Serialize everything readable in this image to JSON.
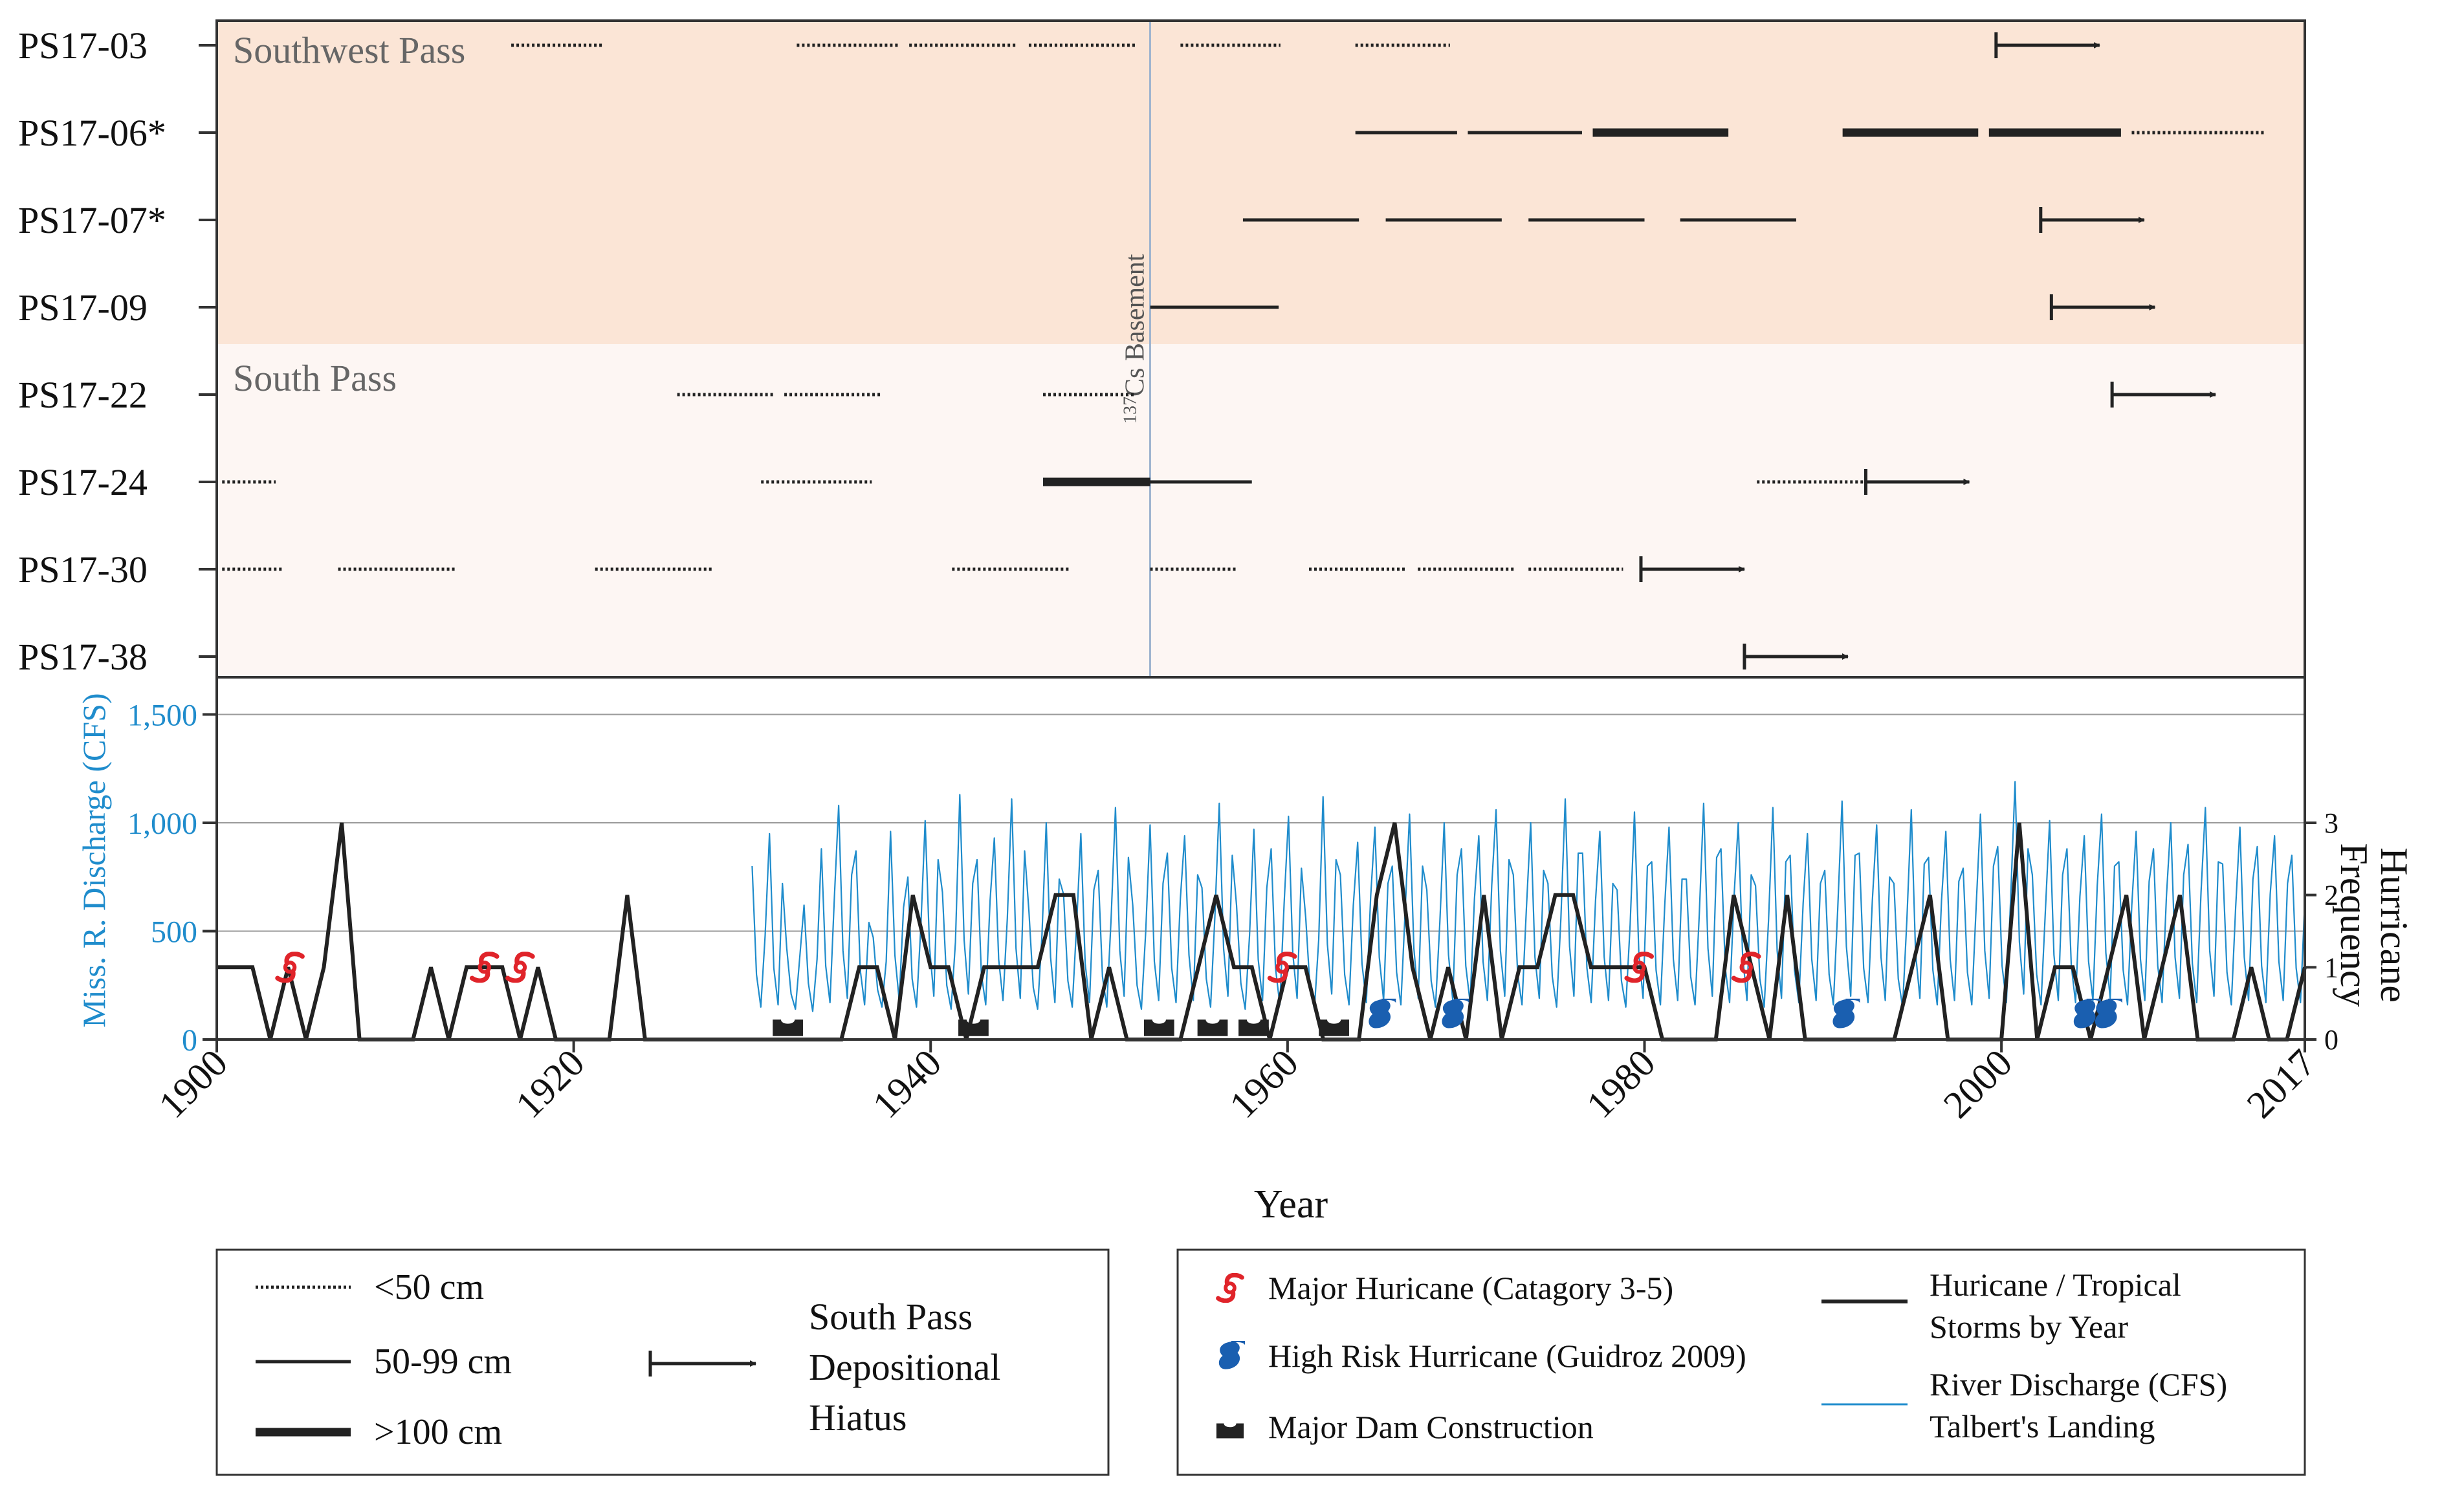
{
  "colors": {
    "southwest_bg": "#fbe5d6",
    "south_bg": "#fdf6f3",
    "discharge": "#1f8ccc",
    "axis_blue": "#1f8ccc",
    "hurricane_line": "#222222",
    "major_red": "#e0242a",
    "high_risk_blue": "#1a5fb0",
    "basement_line": "#9fb4cf",
    "frame": "#333333"
  },
  "chart_data": [
    {
      "type": "timeline",
      "region_labels": {
        "southwest": "Southwest Pass",
        "south": "South Pass"
      },
      "basement_label": {
        "superscript": "137",
        "text": "Cs Basement",
        "year": 1952.3
      },
      "cores": [
        {
          "name": "PS17-03",
          "region": "southwest",
          "segments": [
            {
              "from": 1916.5,
              "to": 1921.7,
              "cls": "<50 cm"
            },
            {
              "from": 1932.5,
              "to": 1938.3,
              "cls": "<50 cm"
            },
            {
              "from": 1938.8,
              "to": 1944.8,
              "cls": "<50 cm"
            },
            {
              "from": 1945.5,
              "to": 1951.5,
              "cls": "<50 cm"
            },
            {
              "from": 1954,
              "to": 1959.6,
              "cls": "<50 cm"
            },
            {
              "from": 1963.8,
              "to": 1969.1,
              "cls": "<50 cm"
            }
          ],
          "hiatus_from": 1999.7
        },
        {
          "name": "PS17-06*",
          "region": "southwest",
          "segments": [
            {
              "from": 1963.8,
              "to": 1969.5,
              "cls": "50-99 cm"
            },
            {
              "from": 1970.1,
              "to": 1976.5,
              "cls": "50-99 cm"
            },
            {
              "from": 1977.1,
              "to": 1984.7,
              "cls": ">100 cm"
            },
            {
              "from": 1991.1,
              "to": 1998.7,
              "cls": ">100 cm"
            },
            {
              "from": 1999.3,
              "to": 2006.7,
              "cls": ">100 cm"
            },
            {
              "from": 2007.3,
              "to": 2014.7,
              "cls": "<50 cm"
            }
          ],
          "hiatus_from": null
        },
        {
          "name": "PS17-07*",
          "region": "southwest",
          "segments": [
            {
              "from": 1957.5,
              "to": 1964,
              "cls": "50-99 cm"
            },
            {
              "from": 1965.5,
              "to": 1972,
              "cls": "50-99 cm"
            },
            {
              "from": 1973.5,
              "to": 1980,
              "cls": "50-99 cm"
            },
            {
              "from": 1982,
              "to": 1988.5,
              "cls": "50-99 cm"
            }
          ],
          "hiatus_from": 2002.2
        },
        {
          "name": "PS17-09",
          "region": "southwest",
          "segments": [
            {
              "from": 1952.3,
              "to": 1959.5,
              "cls": "50-99 cm"
            }
          ],
          "hiatus_from": 2002.8
        },
        {
          "name": "PS17-22",
          "region": "south",
          "segments": [
            {
              "from": 1925.8,
              "to": 1931.2,
              "cls": "<50 cm"
            },
            {
              "from": 1931.8,
              "to": 1937.3,
              "cls": "<50 cm"
            },
            {
              "from": 1946.3,
              "to": 1951.5,
              "cls": "<50 cm"
            }
          ],
          "hiatus_from": 2006.2
        },
        {
          "name": "PS17-24",
          "region": "south",
          "segments": [
            {
              "from": 1900.3,
              "to": 1903.3,
              "cls": "<50 cm"
            },
            {
              "from": 1930.5,
              "to": 1936.7,
              "cls": "<50 cm"
            },
            {
              "from": 1946.3,
              "to": 1952.3,
              "cls": ">100 cm"
            },
            {
              "from": 1952.3,
              "to": 1958,
              "cls": "50-99 cm"
            },
            {
              "from": 1986.3,
              "to": 1992.4,
              "cls": "<50 cm"
            }
          ],
          "hiatus_from": 1992.4
        },
        {
          "name": "PS17-30",
          "region": "south",
          "segments": [
            {
              "from": 1900.3,
              "to": 1903.7,
              "cls": "<50 cm"
            },
            {
              "from": 1906.8,
              "to": 1913.4,
              "cls": "<50 cm"
            },
            {
              "from": 1921.2,
              "to": 1927.8,
              "cls": "<50 cm"
            },
            {
              "from": 1941.2,
              "to": 1947.8,
              "cls": "<50 cm"
            },
            {
              "from": 1952.3,
              "to": 1957.1,
              "cls": "<50 cm"
            },
            {
              "from": 1961.2,
              "to": 1966.6,
              "cls": "<50 cm"
            },
            {
              "from": 1967.3,
              "to": 1972.7,
              "cls": "<50 cm"
            },
            {
              "from": 1973.5,
              "to": 1978.8,
              "cls": "<50 cm"
            }
          ],
          "hiatus_from": 1979.8
        },
        {
          "name": "PS17-38",
          "region": "south",
          "segments": [],
          "hiatus_from": 1985.6
        }
      ]
    },
    {
      "type": "line",
      "x_title": "Year",
      "y_left_title": "Miss. R. Discharge (CFS)",
      "y_right_title_1": "Hurricane",
      "y_right_title_2": "Frequency",
      "x_ticks": [
        "1900",
        "1920",
        "1940",
        "1960",
        "1980",
        "2000",
        "2017"
      ],
      "y_left_ticks": [
        "0",
        "500",
        "1,000",
        "1,500"
      ],
      "y_right_ticks": [
        "0",
        "1",
        "2",
        "3"
      ],
      "xlim": [
        1900,
        2017
      ],
      "ylim_left": [
        0,
        1650
      ],
      "ylim_right": [
        0,
        3.6
      ],
      "gridlines_left": [
        500,
        1000,
        1500
      ],
      "series": [
        {
          "name": "Huricane / Tropical Storms by Year",
          "axis": "right",
          "kind": "line",
          "x": [
            1900,
            1902,
            1903,
            1904,
            1905,
            1906,
            1907,
            1908,
            1909,
            1910,
            1911,
            1912,
            1913,
            1914,
            1915,
            1916,
            1917,
            1918,
            1919,
            1920,
            1921,
            1922,
            1923,
            1924,
            1925,
            1926,
            1927,
            1928,
            1929,
            1930,
            1931,
            1932,
            1933,
            1934,
            1935,
            1936,
            1937,
            1938,
            1939,
            1940,
            1941,
            1942,
            1943,
            1944,
            1945,
            1946,
            1947,
            1948,
            1949,
            1950,
            1951,
            1952,
            1953,
            1954,
            1955,
            1956,
            1957,
            1958,
            1959,
            1960,
            1961,
            1962,
            1963,
            1964,
            1965,
            1966,
            1967,
            1968,
            1969,
            1970,
            1971,
            1972,
            1973,
            1974,
            1975,
            1976,
            1977,
            1978,
            1979,
            1980,
            1981,
            1982,
            1983,
            1984,
            1985,
            1986,
            1987,
            1988,
            1989,
            1990,
            1991,
            1992,
            1993,
            1994,
            1995,
            1996,
            1997,
            1998,
            1999,
            2000,
            2001,
            2002,
            2003,
            2004,
            2005,
            2006,
            2007,
            2008,
            2009,
            2010,
            2011,
            2012,
            2013,
            2014,
            2015,
            2016,
            2017
          ],
          "values": [
            1,
            1,
            0,
            1,
            0,
            1,
            3,
            0,
            0,
            0,
            0,
            1,
            0,
            1,
            1,
            1,
            0,
            1,
            0,
            0,
            0,
            0,
            2,
            0,
            0,
            0,
            0,
            0,
            0,
            0,
            0,
            0,
            0,
            0,
            0,
            1,
            1,
            0,
            2,
            1,
            1,
            0,
            1,
            1,
            1,
            1,
            2,
            2,
            0,
            1,
            0,
            0,
            0,
            0,
            1,
            2,
            1,
            1,
            0,
            1,
            1,
            0,
            0,
            0,
            2,
            3,
            1,
            0,
            1,
            0,
            2,
            0,
            1,
            1,
            2,
            2,
            1,
            1,
            1,
            1,
            0,
            0,
            0,
            0,
            2,
            1,
            0,
            2,
            0,
            0,
            0,
            0,
            0,
            0,
            1,
            2,
            0,
            0,
            0,
            0,
            3,
            0,
            1,
            1,
            0,
            1,
            2,
            0,
            1,
            2,
            0,
            0,
            0,
            1,
            0,
            0,
            1
          ]
        },
        {
          "name": "River Discharge (CFS) Talbert's Landing",
          "axis": "left",
          "kind": "line",
          "x_start": 1930,
          "x_end": 2017,
          "points_per_year": 4,
          "values": [
            800,
            300,
            150,
            480,
            950,
            330,
            160,
            720,
            420,
            210,
            140,
            380,
            620,
            260,
            130,
            370,
            880,
            340,
            170,
            650,
            1080,
            410,
            190,
            760,
            870,
            320,
            160,
            540,
            470,
            230,
            150,
            360,
            960,
            390,
            180,
            610,
            750,
            280,
            150,
            520,
            1010,
            430,
            200,
            830,
            680,
            250,
            140,
            450,
            1130,
            460,
            210,
            720,
            830,
            300,
            160,
            640,
            930,
            370,
            180,
            560,
            1110,
            420,
            190,
            870,
            590,
            240,
            140,
            480,
            1000,
            380,
            170,
            740,
            670,
            270,
            150,
            520,
            950,
            350,
            170,
            690,
            780,
            290,
            150,
            560,
            1070,
            410,
            200,
            840,
            620,
            250,
            140,
            500,
            990,
            360,
            180,
            720,
            860,
            330,
            170,
            650,
            940,
            390,
            180,
            760,
            700,
            280,
            150,
            570,
            1090,
            420,
            200,
            850,
            620,
            260,
            140,
            480,
            970,
            370,
            180,
            700,
            880,
            330,
            160,
            630,
            1030,
            400,
            190,
            790,
            560,
            230,
            140,
            460,
            1120,
            440,
            210,
            830,
            760,
            300,
            160,
            620,
            910,
            350,
            170,
            660,
            980,
            380,
            180,
            720,
            800,
            310,
            160,
            600,
            1040,
            420,
            190,
            800,
            690,
            270,
            150,
            540,
            1000,
            390,
            180,
            760,
            880,
            340,
            170,
            650,
            940,
            360,
            180,
            710,
            1060,
            410,
            200,
            830,
            760,
            300,
            160,
            600,
            1000,
            380,
            190,
            780,
            720,
            290,
            150,
            560,
            1110,
            430,
            200,
            860,
            860,
            330,
            170,
            640,
            960,
            380,
            180,
            720,
            690,
            270,
            150,
            530,
            1050,
            400,
            190,
            800,
            820,
            320,
            160,
            620,
            980,
            370,
            180,
            740,
            740,
            290,
            160,
            580,
            1090,
            420,
            200,
            840,
            880,
            330,
            170,
            650,
            1000,
            390,
            180,
            760,
            710,
            280,
            150,
            550,
            1070,
            410,
            190,
            820,
            850,
            320,
            170,
            630,
            950,
            370,
            180,
            720,
            780,
            300,
            160,
            600,
            1100,
            430,
            200,
            850,
            860,
            330,
            170,
            640,
            990,
            380,
            180,
            750,
            720,
            280,
            150,
            560,
            1060,
            400,
            190,
            810,
            840,
            320,
            160,
            640,
            960,
            370,
            180,
            730,
            790,
            310,
            160,
            610,
            1040,
            410,
            190,
            800,
            890,
            340,
            170,
            660,
            1190,
            450,
            210,
            880,
            760,
            300,
            160,
            590,
            1010,
            390,
            180,
            760,
            880,
            340,
            170,
            660,
            940,
            360,
            180,
            710,
            1040,
            400,
            190,
            800,
            820,
            320,
            160,
            620,
            960,
            370,
            180,
            730,
            880,
            340,
            170,
            660,
            1000,
            380,
            190,
            760,
            900,
            350,
            170,
            680,
            1070,
            410,
            200,
            820,
            810,
            310,
            160,
            610,
            980,
            380,
            180,
            740,
            890,
            340,
            170,
            670,
            940,
            360,
            180,
            720,
            850,
            330,
            170,
            640
          ]
        }
      ],
      "markers": {
        "major_hurricane": [
          1904.1,
          1915,
          1917,
          1959.7,
          1979.7,
          1985.7
        ],
        "high_risk_hurricane": [
          1965.2,
          1969.3,
          1991.2,
          2004.7,
          2005.9
        ],
        "dam_construction": [
          1932,
          1942.4,
          1952.8,
          1955.8,
          1958.1,
          1962.6
        ]
      }
    }
  ],
  "legend_left": {
    "items": [
      {
        "label": "<50 cm",
        "style": "dotted"
      },
      {
        "label": "50-99 cm",
        "style": "solid"
      },
      {
        "label": ">100 cm",
        "style": "thick"
      }
    ],
    "hiatus_lines": [
      "South Pass",
      "Depositional",
      "Hiatus"
    ]
  },
  "legend_right": {
    "items": [
      {
        "icon": "major-hurricane-icon",
        "label": "Major Huricane (Catagory 3-5)"
      },
      {
        "icon": "high-risk-hurricane-icon",
        "label": "High Risk Hurricane (Guidroz 2009)"
      },
      {
        "icon": "dam-icon",
        "label": "Major Dam Construction"
      }
    ],
    "line_items": [
      {
        "kind": "hurricane-line",
        "lines": [
          "Huricane / Tropical",
          "Storms by Year"
        ]
      },
      {
        "kind": "discharge-line",
        "lines": [
          "River Discharge (CFS)",
          "Talbert's Landing"
        ]
      }
    ]
  }
}
